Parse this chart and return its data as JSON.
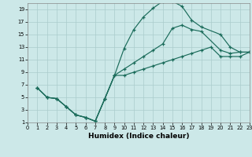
{
  "xlabel": "Humidex (Indice chaleur)",
  "bg_color": "#cce8e8",
  "grid_color": "#aacccc",
  "line_color": "#1a6b5a",
  "xlim": [
    0,
    23
  ],
  "ylim": [
    1,
    20
  ],
  "xticks": [
    0,
    1,
    2,
    3,
    4,
    5,
    6,
    7,
    8,
    9,
    10,
    11,
    12,
    13,
    14,
    15,
    16,
    17,
    18,
    19,
    20,
    21,
    22,
    23
  ],
  "yticks": [
    1,
    3,
    5,
    7,
    9,
    11,
    13,
    15,
    17,
    19
  ],
  "line1_x": [
    1,
    2,
    3,
    4,
    5,
    6,
    7,
    8,
    9,
    10,
    11,
    12,
    13,
    14,
    15,
    16,
    17,
    18,
    20,
    21,
    22,
    23
  ],
  "line1_y": [
    6.5,
    5.0,
    4.8,
    3.5,
    2.2,
    1.8,
    1.2,
    4.8,
    8.5,
    12.8,
    15.8,
    17.8,
    19.2,
    20.3,
    20.3,
    19.5,
    17.3,
    16.2,
    15.0,
    13.0,
    12.2,
    12.2
  ],
  "line2_x": [
    1,
    2,
    3,
    4,
    5,
    6,
    7,
    8,
    9,
    10,
    11,
    12,
    13,
    14,
    15,
    16,
    17,
    18,
    20,
    21,
    22,
    23
  ],
  "line2_y": [
    6.5,
    5.0,
    4.8,
    3.5,
    2.2,
    1.8,
    1.2,
    4.8,
    8.5,
    9.5,
    10.5,
    11.5,
    12.5,
    13.5,
    16.0,
    16.5,
    15.8,
    15.5,
    12.5,
    12.0,
    12.2,
    12.2
  ],
  "line3_x": [
    1,
    2,
    3,
    4,
    5,
    6,
    7,
    8,
    9,
    10,
    11,
    12,
    13,
    14,
    15,
    16,
    17,
    18,
    19,
    20,
    21,
    22,
    23
  ],
  "line3_y": [
    6.5,
    5.0,
    4.8,
    3.5,
    2.2,
    1.8,
    1.2,
    4.8,
    8.5,
    8.5,
    9.0,
    9.5,
    10.0,
    10.5,
    11.0,
    11.5,
    12.0,
    12.5,
    13.0,
    11.5,
    11.5,
    11.5,
    12.2
  ]
}
